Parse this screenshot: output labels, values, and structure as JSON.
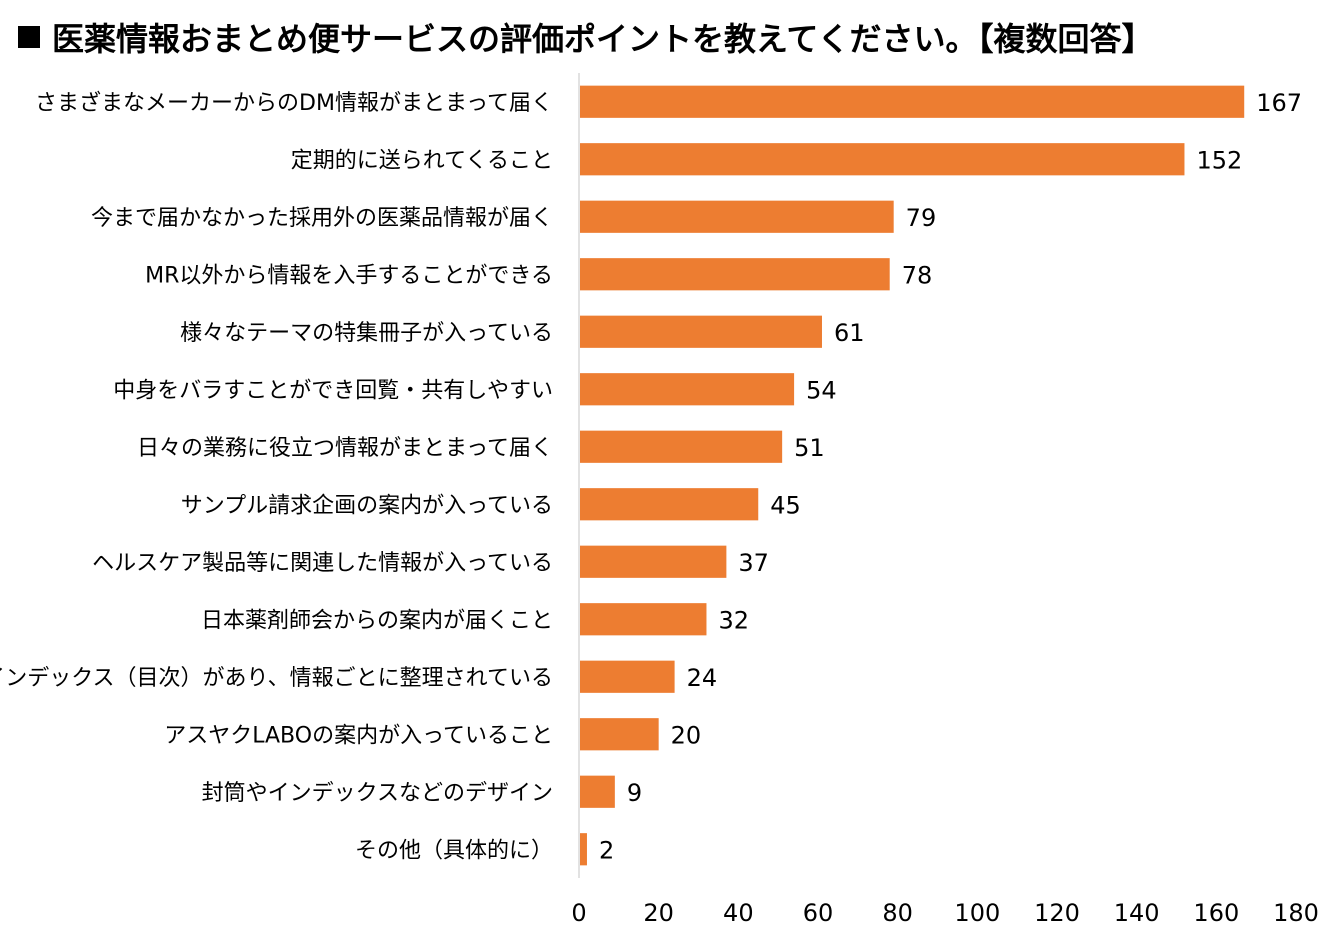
{
  "chart_data": {
    "type": "bar",
    "orientation": "horizontal",
    "title": "医薬情報おまとめ便サービスの評価ポイントを教えてください。【複数回答】",
    "categories": [
      "さまざまなメーカーからのDM情報がまとまって届く",
      "定期的に送られてくること",
      "今まで届かなかった採用外の医薬品情報が届く",
      "MR以外から情報を入手することができる",
      "様々なテーマの特集冊子が入っている",
      "中身をバラすことができ回覧・共有しやすい",
      "日々の業務に役立つ情報がまとまって届く",
      "サンプル請求企画の案内が入っている",
      "ヘルスケア製品等に関連した情報が入っている",
      "日本薬剤師会からの案内が届くこと",
      "インデックス（目次）があり、情報ごとに整理されている",
      "アスヤクLABOの案内が入っていること",
      "封筒やインデックスなどのデザイン",
      "その他（具体的に）"
    ],
    "values": [
      167,
      152,
      79,
      78,
      61,
      54,
      51,
      45,
      37,
      32,
      24,
      20,
      9,
      2
    ],
    "xlim": [
      0,
      180
    ],
    "xticks": [
      0,
      20,
      40,
      60,
      80,
      100,
      120,
      140,
      160,
      180
    ],
    "grid": false,
    "legend": "none",
    "bar_color": "#ED7D31"
  }
}
